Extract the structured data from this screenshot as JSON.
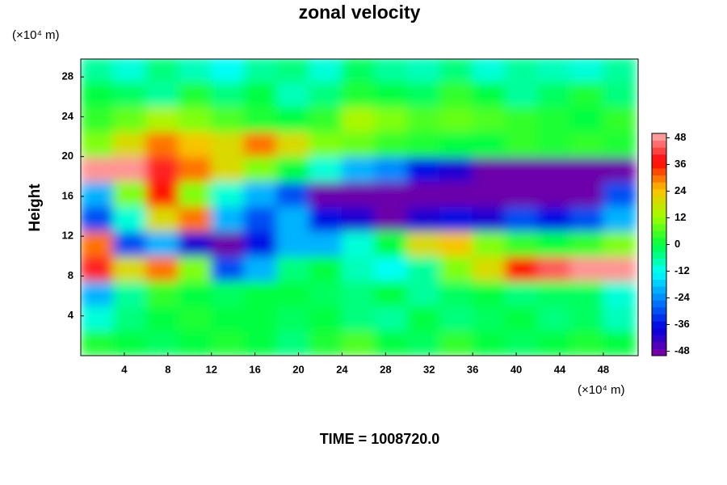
{
  "chart_data": {
    "type": "heatmap",
    "title": "zonal velocity",
    "ylabel": "Height",
    "y_unit_label": "(×10⁴ m)",
    "x_unit_label": "(×10⁴ m)",
    "footer": "TIME = 1008720.0",
    "xlim": [
      0,
      51.2
    ],
    "ylim": [
      0,
      29.8
    ],
    "xticks": [
      4,
      8,
      12,
      16,
      20,
      24,
      28,
      32,
      36,
      40,
      44,
      48
    ],
    "yticks": [
      4,
      8,
      12,
      16,
      20,
      24,
      28
    ],
    "x_edges": [
      0,
      3,
      6,
      9,
      12,
      15,
      18,
      21,
      24,
      27,
      30,
      33,
      36,
      39,
      42,
      45,
      48,
      51
    ],
    "y_edges": [
      0,
      2.5,
      5,
      7.5,
      10,
      12.5,
      15,
      17.5,
      20,
      22.5,
      25,
      27.5,
      30
    ],
    "z": [
      [
        2,
        0,
        -2,
        0,
        2,
        0,
        -4,
        2,
        6,
        0,
        -2,
        4,
        0,
        -2,
        0,
        2,
        0
      ],
      [
        -10,
        -4,
        0,
        2,
        0,
        0,
        -2,
        0,
        -4,
        -6,
        0,
        -4,
        -2,
        0,
        -4,
        -2,
        -8
      ],
      [
        -20,
        -6,
        4,
        0,
        -2,
        0,
        0,
        -2,
        -4,
        0,
        -6,
        -2,
        0,
        -4,
        -2,
        -2,
        -10
      ],
      [
        40,
        20,
        30,
        10,
        -30,
        -20,
        -4,
        0,
        -8,
        -12,
        -6,
        10,
        20,
        36,
        44,
        48,
        48
      ],
      [
        30,
        -30,
        -20,
        -40,
        -48,
        -36,
        -20,
        -20,
        -10,
        0,
        20,
        24,
        10,
        4,
        0,
        4,
        10
      ],
      [
        -30,
        -10,
        20,
        30,
        -20,
        -30,
        -20,
        -36,
        -40,
        -48,
        -40,
        -36,
        -40,
        -30,
        -36,
        -30,
        -20
      ],
      [
        -20,
        10,
        36,
        10,
        -10,
        -20,
        -30,
        -48,
        -48,
        -48,
        -48,
        -48,
        -48,
        -48,
        -48,
        -48,
        -30
      ],
      [
        48,
        48,
        40,
        30,
        20,
        10,
        0,
        -10,
        -20,
        -24,
        -36,
        -40,
        -48,
        -48,
        -48,
        -48,
        -48
      ],
      [
        10,
        20,
        30,
        24,
        20,
        30,
        20,
        10,
        8,
        4,
        2,
        0,
        0,
        4,
        2,
        4,
        2
      ],
      [
        4,
        8,
        14,
        10,
        6,
        2,
        0,
        4,
        14,
        10,
        6,
        8,
        6,
        4,
        2,
        0,
        4
      ],
      [
        0,
        -2,
        -6,
        2,
        -4,
        0,
        -8,
        -4,
        2,
        0,
        -2,
        4,
        0,
        -6,
        -2,
        2,
        -4
      ],
      [
        -6,
        -10,
        -4,
        -8,
        -12,
        -6,
        -4,
        -10,
        -2,
        -6,
        -8,
        -4,
        -10,
        -6,
        -8,
        -10,
        -6
      ]
    ],
    "clim": [
      -50,
      50
    ],
    "colormap": [
      "#8000a0",
      "#0000e0",
      "#0080ff",
      "#00ffff",
      "#00ff40",
      "#a0ff00",
      "#ffc000",
      "#ff0000",
      "#ffb0b0"
    ],
    "cticks": [
      48,
      36,
      24,
      12,
      0,
      -12,
      -24,
      -36,
      -48
    ]
  }
}
